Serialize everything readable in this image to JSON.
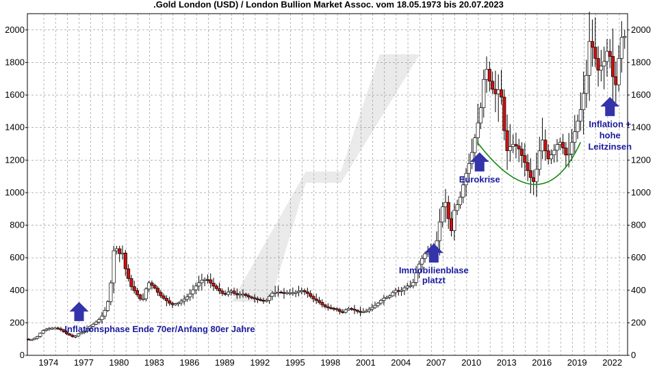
{
  "chart_data": {
    "type": "candlestick",
    "title": ".Gold London (USD) / London Bullion Market Assoc. vom 18.05.1973 bis 20.07.2023",
    "xlabel": "",
    "ylabel": "",
    "ylim": [
      0,
      2100
    ],
    "xlim": [
      1972.6,
      2023.7
    ],
    "y_ticks": [
      0,
      200,
      400,
      600,
      800,
      1000,
      1200,
      1400,
      1600,
      1800,
      2000
    ],
    "x_ticks": [
      1974,
      1977,
      1980,
      1983,
      1986,
      1989,
      1992,
      1995,
      1998,
      2001,
      2004,
      2007,
      2010,
      2013,
      2016,
      2019,
      2022
    ],
    "grid": true,
    "series_path": [
      [
        1972.6,
        100
      ],
      [
        1973.0,
        95
      ],
      [
        1973.5,
        110
      ],
      [
        1974.0,
        150
      ],
      [
        1974.5,
        165
      ],
      [
        1975.0,
        170
      ],
      [
        1975.5,
        160
      ],
      [
        1976.0,
        135
      ],
      [
        1976.7,
        110
      ],
      [
        1977.0,
        130
      ],
      [
        1977.5,
        145
      ],
      [
        1978.0,
        175
      ],
      [
        1978.5,
        200
      ],
      [
        1979.0,
        230
      ],
      [
        1979.5,
        300
      ],
      [
        1979.8,
        420
      ],
      [
        1980.0,
        620
      ],
      [
        1980.2,
        680
      ],
      [
        1980.5,
        620
      ],
      [
        1980.8,
        640
      ],
      [
        1981.0,
        550
      ],
      [
        1981.5,
        430
      ],
      [
        1982.0,
        380
      ],
      [
        1982.5,
        330
      ],
      [
        1983.0,
        450
      ],
      [
        1983.5,
        420
      ],
      [
        1984.0,
        370
      ],
      [
        1984.5,
        340
      ],
      [
        1985.0,
        310
      ],
      [
        1985.5,
        320
      ],
      [
        1986.0,
        340
      ],
      [
        1986.5,
        370
      ],
      [
        1987.0,
        420
      ],
      [
        1987.5,
        460
      ],
      [
        1988.0,
        470
      ],
      [
        1988.5,
        430
      ],
      [
        1989.0,
        400
      ],
      [
        1989.5,
        370
      ],
      [
        1990.0,
        400
      ],
      [
        1990.5,
        370
      ],
      [
        1991.0,
        380
      ],
      [
        1991.5,
        360
      ],
      [
        1992.0,
        350
      ],
      [
        1992.5,
        340
      ],
      [
        1993.0,
        330
      ],
      [
        1993.5,
        380
      ],
      [
        1994.0,
        390
      ],
      [
        1994.5,
        385
      ],
      [
        1995.0,
        385
      ],
      [
        1995.5,
        385
      ],
      [
        1996.0,
        400
      ],
      [
        1996.5,
        385
      ],
      [
        1997.0,
        350
      ],
      [
        1997.5,
        330
      ],
      [
        1998.0,
        300
      ],
      [
        1998.5,
        290
      ],
      [
        1999.0,
        285
      ],
      [
        1999.5,
        260
      ],
      [
        2000.0,
        290
      ],
      [
        2000.5,
        280
      ],
      [
        2001.0,
        265
      ],
      [
        2001.5,
        270
      ],
      [
        2002.0,
        290
      ],
      [
        2002.5,
        315
      ],
      [
        2003.0,
        350
      ],
      [
        2003.5,
        360
      ],
      [
        2004.0,
        400
      ],
      [
        2004.5,
        395
      ],
      [
        2005.0,
        425
      ],
      [
        2005.5,
        430
      ],
      [
        2006.0,
        550
      ],
      [
        2006.5,
        620
      ],
      [
        2007.0,
        650
      ],
      [
        2007.5,
        670
      ],
      [
        2008.0,
        900
      ],
      [
        2008.3,
        950
      ],
      [
        2008.8,
        750
      ],
      [
        2009.0,
        880
      ],
      [
        2009.5,
        950
      ],
      [
        2010.0,
        1100
      ],
      [
        2010.5,
        1220
      ],
      [
        2011.0,
        1400
      ],
      [
        2011.4,
        1550
      ],
      [
        2011.7,
        1800
      ],
      [
        2012.0,
        1700
      ],
      [
        2012.5,
        1600
      ],
      [
        2013.0,
        1650
      ],
      [
        2013.3,
        1400
      ],
      [
        2013.5,
        1250
      ],
      [
        2014.0,
        1300
      ],
      [
        2014.5,
        1280
      ],
      [
        2015.0,
        1200
      ],
      [
        2015.5,
        1100
      ],
      [
        2015.9,
        1060
      ],
      [
        2016.3,
        1250
      ],
      [
        2016.6,
        1330
      ],
      [
        2017.0,
        1200
      ],
      [
        2017.5,
        1250
      ],
      [
        2018.0,
        1320
      ],
      [
        2018.5,
        1250
      ],
      [
        2018.7,
        1200
      ],
      [
        2019.0,
        1290
      ],
      [
        2019.5,
        1420
      ],
      [
        2019.8,
        1500
      ],
      [
        2020.0,
        1580
      ],
      [
        2020.3,
        1700
      ],
      [
        2020.6,
        1950
      ],
      [
        2021.0,
        1850
      ],
      [
        2021.3,
        1750
      ],
      [
        2021.8,
        1800
      ],
      [
        2022.2,
        1900
      ],
      [
        2022.6,
        1700
      ],
      [
        2022.9,
        1650
      ],
      [
        2023.2,
        1950
      ],
      [
        2023.5,
        1960
      ]
    ],
    "annotations": [
      {
        "text": "Inflationsphase Ende 70er/Anfang 80er Jahre",
        "x": 1977.0,
        "y": 160,
        "arrow": true
      },
      {
        "text": "Immobilienblase",
        "x": 2007.2,
        "y": 520,
        "arrow": true
      },
      {
        "text": "platzt",
        "x": 2007.2,
        "y": 460,
        "arrow": false
      },
      {
        "text": "Eurokrise",
        "x": 2011.1,
        "y": 1080,
        "arrow": true
      },
      {
        "text": "Inflation +",
        "x": 2022.2,
        "y": 1420,
        "arrow": true
      },
      {
        "text": "hohe",
        "x": 2022.2,
        "y": 1350,
        "arrow": false
      },
      {
        "text": "Leitzinsen",
        "x": 2022.2,
        "y": 1280,
        "arrow": false
      }
    ],
    "colors": {
      "up_candle": "#ffffff",
      "down_candle": "#cc1111",
      "wick": "#000000",
      "arrow": "#3333aa",
      "annotation_text": "#1a1a9e",
      "arc": "#118811",
      "watermark": "#e6e6e6",
      "grid": "#888888"
    }
  }
}
